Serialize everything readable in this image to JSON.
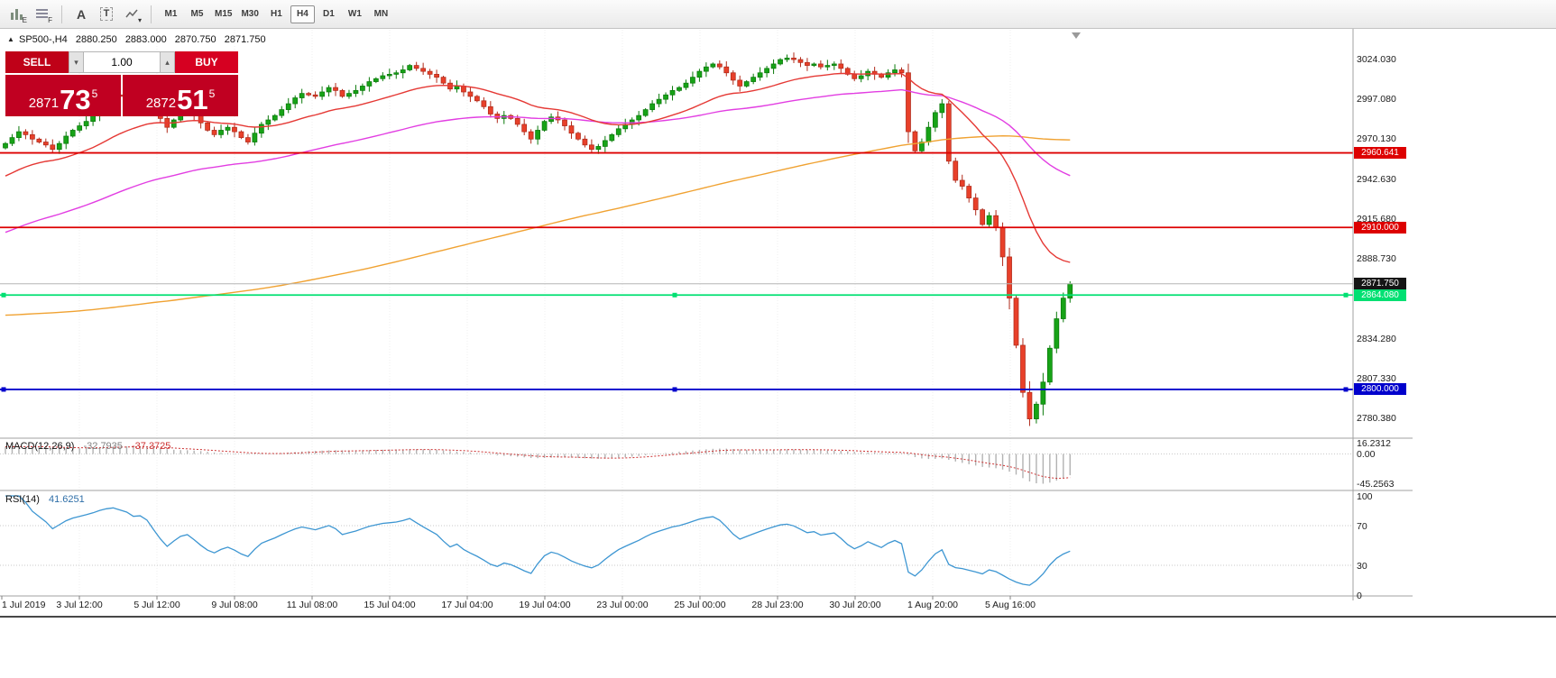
{
  "toolbar": {
    "icons": [
      {
        "name": "chart-profile-icon",
        "glyph": "E"
      },
      {
        "name": "chart-grid-icon",
        "glyph": "F"
      },
      {
        "name": "font-icon",
        "glyph": "A"
      },
      {
        "name": "text-label-icon",
        "glyph": "T"
      },
      {
        "name": "draw-style-icon",
        "glyph": "▾"
      }
    ],
    "timeframes": [
      {
        "label": "M1",
        "active": false
      },
      {
        "label": "M5",
        "active": false
      },
      {
        "label": "M15",
        "active": false
      },
      {
        "label": "M30",
        "active": false
      },
      {
        "label": "H1",
        "active": false
      },
      {
        "label": "H4",
        "active": true
      },
      {
        "label": "D1",
        "active": false
      },
      {
        "label": "W1",
        "active": false
      },
      {
        "label": "MN",
        "active": false
      }
    ]
  },
  "chart": {
    "symbol_line": {
      "marker": "▲",
      "symbol": "SP500-,H4",
      "open": "2880.250",
      "high": "2883.000",
      "low": "2870.750",
      "close": "2871.750"
    },
    "trade_panel": {
      "sell_label": "SELL",
      "buy_label": "BUY",
      "volume": "1.00",
      "down_arrow": "▾",
      "up_arrow": "▴",
      "sell_price_big": "2871",
      "sell_price_huge": "73",
      "sell_price_sup": "5",
      "buy_price_big": "2872",
      "buy_price_huge": "51",
      "buy_price_sup": "5"
    },
    "price_axis": {
      "labels": [
        {
          "text": "3024.030",
          "price": 3024.03
        },
        {
          "text": "2997.080",
          "price": 2997.08
        },
        {
          "text": "2970.130",
          "price": 2970.13
        },
        {
          "text": "2942.630",
          "price": 2942.63
        },
        {
          "text": "2915.680",
          "price": 2915.68
        },
        {
          "text": "2888.730",
          "price": 2888.73
        },
        {
          "text": "2861.780",
          "price": 2861.78
        },
        {
          "text": "2834.280",
          "price": 2834.28
        },
        {
          "text": "2807.330",
          "price": 2807.33
        },
        {
          "text": "2780.380",
          "price": 2780.38
        }
      ]
    },
    "hlines": [
      {
        "label": "2960.641",
        "price": 2960.641,
        "color": "#dd0000",
        "handles": false
      },
      {
        "label": "2910.000",
        "price": 2910.0,
        "color": "#dd0000",
        "handles": false
      },
      {
        "label": "2864.080",
        "price": 2864.08,
        "color": "#00e072",
        "handles": true
      },
      {
        "label": "2800.000",
        "price": 2800.0,
        "color": "#0000cc",
        "handles": true
      }
    ],
    "current_price": {
      "label": "2871.750",
      "price": 2871.75
    }
  },
  "macd": {
    "label": "MACD(12,26,9)",
    "value_main": "-32.7935",
    "value_signal": "-37.3725",
    "axis": [
      {
        "text": "16.2312",
        "value": 16.2312
      },
      {
        "text": "0.00",
        "value": 0
      },
      {
        "text": "-45.2563",
        "value": -45.2563
      }
    ]
  },
  "rsi": {
    "label": "RSI(14)",
    "value": "41.6251",
    "axis": [
      {
        "text": "100",
        "value": 100
      },
      {
        "text": "70",
        "value": 70
      },
      {
        "text": "30",
        "value": 30
      },
      {
        "text": "0",
        "value": 0
      }
    ],
    "levels": [
      70,
      30
    ]
  },
  "colors": {
    "candle_up": "#17a317",
    "candle_up_border": "#0b7a0b",
    "candle_down": "#e8402a",
    "candle_down_border": "#b02a1a",
    "ma_fast": "#e53935",
    "ma_mid": "#e23ee2",
    "ma_slow": "#f0a232",
    "rsi_line": "#3d96d2",
    "macd_signal": "#cc3333",
    "macd_hist": "#b2b2b2",
    "hline_red": "#dd0000",
    "hline_green": "#00e072",
    "hline_blue": "#0000cc",
    "current_tag_bg": "#151515",
    "sell_button": "#bf0118",
    "buy_button": "#d60021",
    "price_panel": "#c00021"
  },
  "chart_data": {
    "type": "candlestick",
    "symbol": "SP500",
    "timeframe": "H4",
    "current_bar_ohlc": {
      "open": 2880.25,
      "high": 2883.0,
      "low": 2870.75,
      "close": 2871.75
    },
    "price_range": [
      2780.38,
      3024.03
    ],
    "time_labels": [
      "1 Jul 2019",
      "3 Jul 12:00",
      "5 Jul 12:00",
      "9 Jul 08:00",
      "11 Jul 08:00",
      "15 Jul 04:00",
      "17 Jul 04:00",
      "19 Jul 04:00",
      "23 Jul 00:00",
      "25 Jul 00:00",
      "28 Jul 23:00",
      "30 Jul 20:00",
      "1 Aug 20:00",
      "5 Aug 16:00"
    ],
    "closes": [
      2967,
      2971,
      2975,
      2973,
      2970,
      2968,
      2966,
      2963,
      2967,
      2972,
      2976,
      2979,
      2982,
      2986,
      2992,
      2997,
      3000,
      2999,
      2998,
      2996,
      2997,
      2995,
      2990,
      2984,
      2978,
      2983,
      2988,
      2990,
      2986,
      2981,
      2976,
      2973,
      2976,
      2978,
      2975,
      2971,
      2968,
      2974,
      2980,
      2983,
      2986,
      2990,
      2994,
      2998,
      3001,
      3000,
      2999,
      3002,
      3005,
      3003,
      2999,
      3001,
      3003,
      3006,
      3009,
      3011,
      3013,
      3014,
      3015,
      3017,
      3020,
      3018,
      3016,
      3014,
      3012,
      3008,
      3004,
      3006,
      3002,
      2999,
      2996,
      2992,
      2987,
      2984,
      2986,
      2984,
      2980,
      2975,
      2970,
      2976,
      2982,
      2985,
      2983,
      2979,
      2974,
      2970,
      2966,
      2963,
      2965,
      2969,
      2973,
      2977,
      2980,
      2983,
      2986,
      2990,
      2994,
      2997,
      3000,
      3003,
      3005,
      3008,
      3012,
      3016,
      3019,
      3021,
      3019,
      3015,
      3010,
      3006,
      3009,
      3012,
      3015,
      3018,
      3021,
      3024,
      3025,
      3024,
      3022,
      3020,
      3021,
      3019,
      3020,
      3021,
      3018,
      3014,
      3011,
      3013,
      3016,
      3014,
      3012,
      3015,
      3017,
      3015,
      2975,
      2962,
      2968,
      2978,
      2988,
      2994,
      2955,
      2942,
      2938,
      2930,
      2922,
      2912,
      2918,
      2910,
      2890,
      2862,
      2830,
      2798,
      2780,
      2790,
      2805,
      2828,
      2848,
      2862,
      2871.75
    ],
    "overlays": [
      {
        "name": "ma-fast",
        "type": "ema",
        "period": 24,
        "color_key": "ma_fast"
      },
      {
        "name": "ma-medium",
        "type": "ema",
        "period": 72,
        "color_key": "ma_mid"
      },
      {
        "name": "ma-slow",
        "type": "sma",
        "period": 200,
        "color_key": "ma_slow"
      }
    ],
    "indicators": [
      {
        "name": "MACD",
        "params": [
          12,
          26,
          9
        ],
        "last_main": -32.7935,
        "last_signal": -37.3725,
        "range": [
          -45.2563,
          16.2312
        ]
      },
      {
        "name": "RSI",
        "params": [
          14
        ],
        "last": 41.6251,
        "range": [
          0,
          100
        ],
        "levels": [
          30,
          70
        ]
      }
    ],
    "horizontal_lines": [
      2960.641,
      2910.0,
      2864.08,
      2800.0
    ]
  }
}
